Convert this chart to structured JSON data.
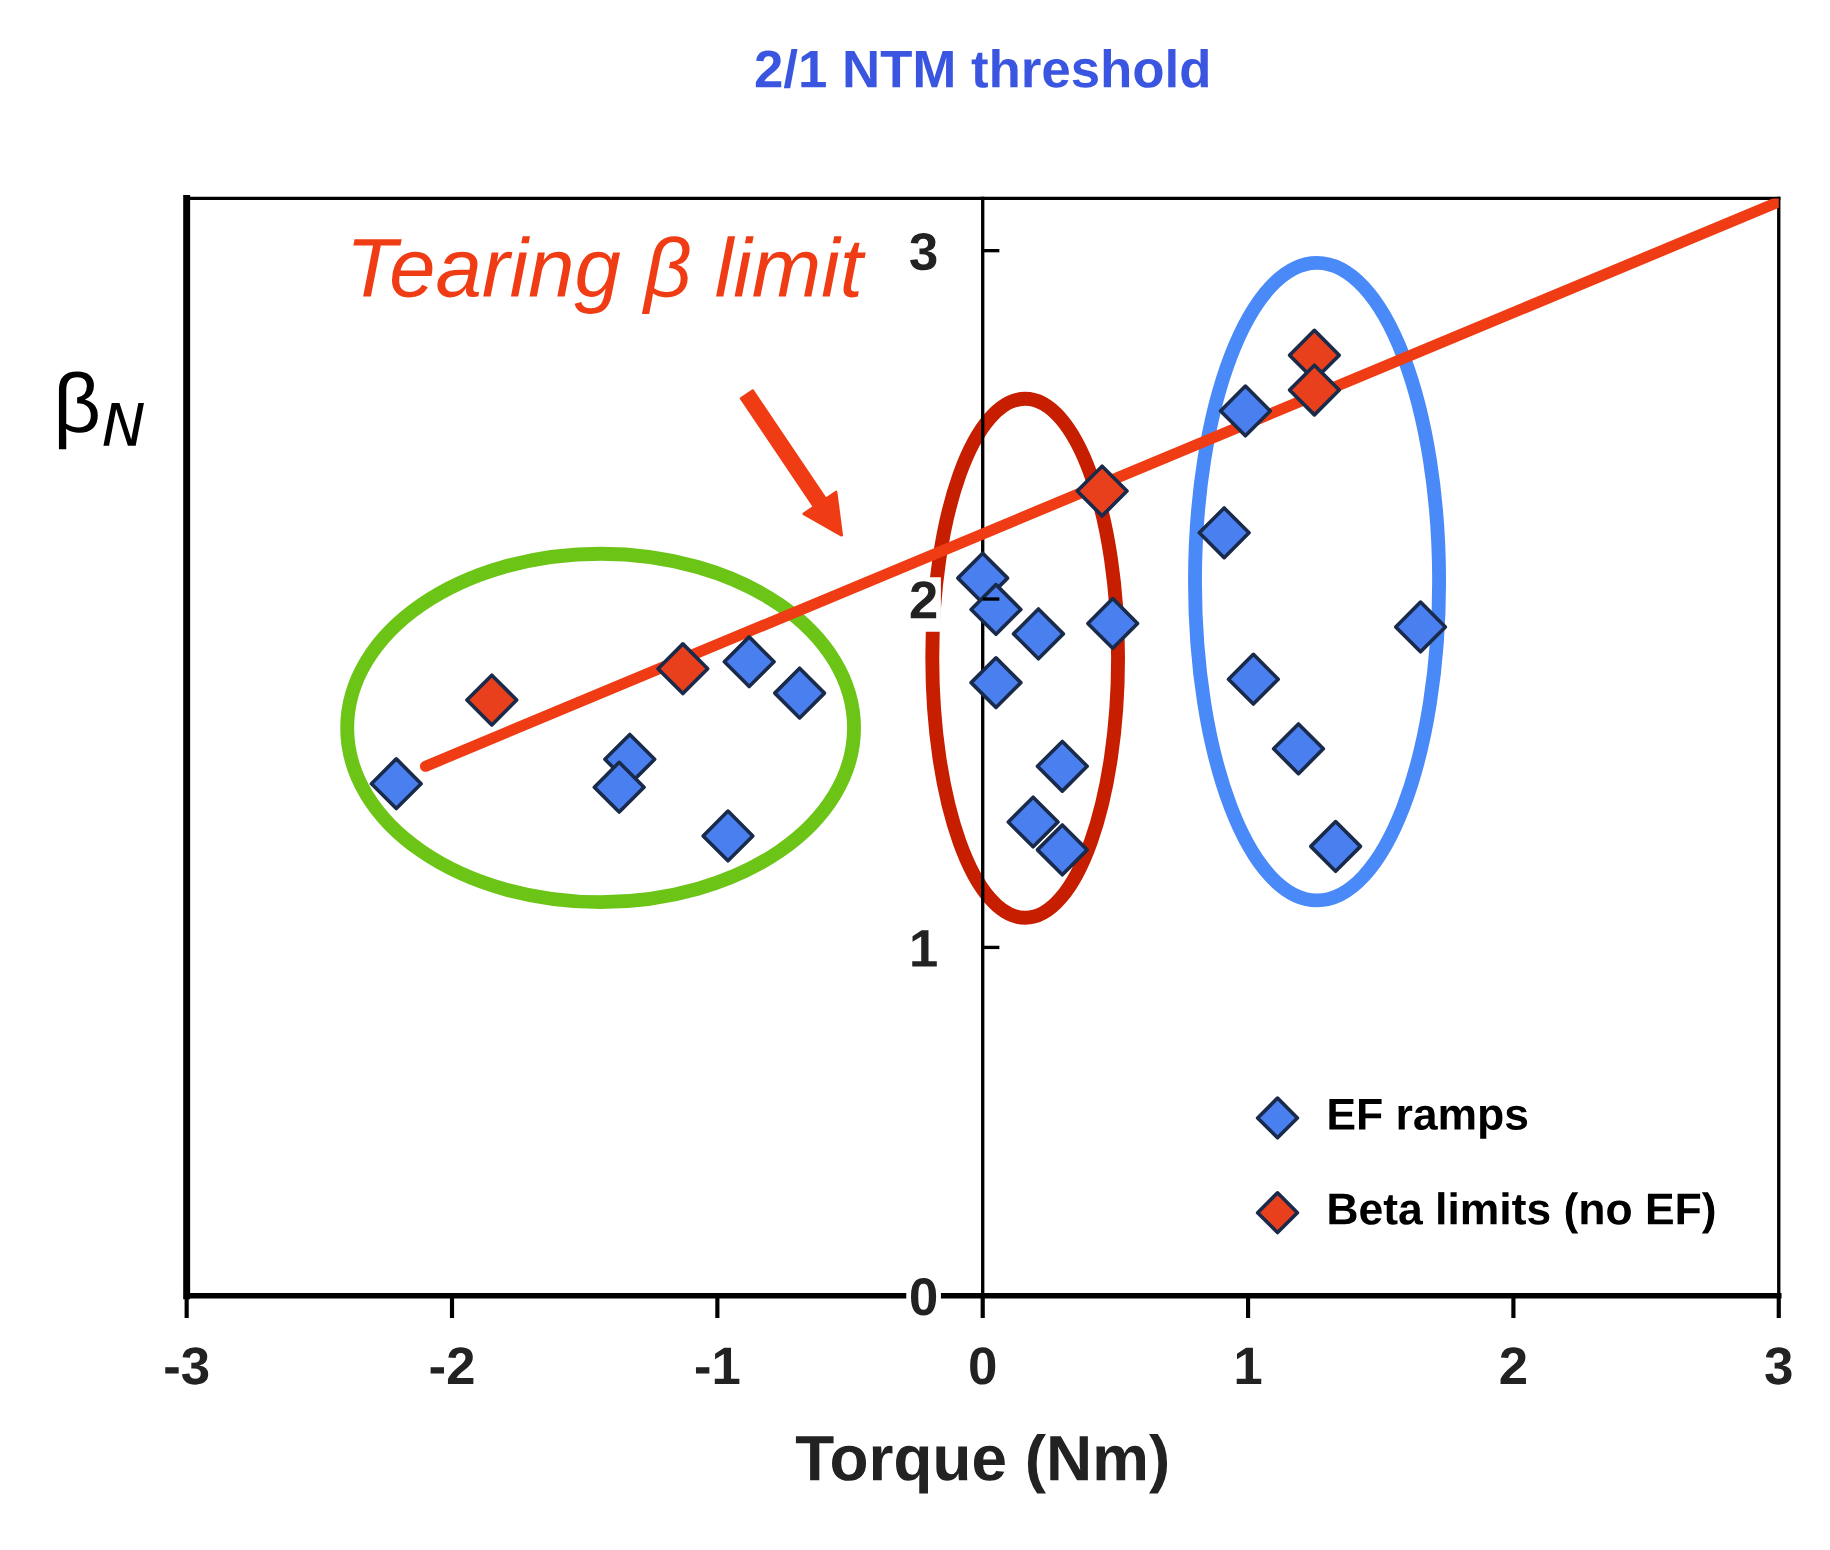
{
  "chart_data": {
    "type": "scatter",
    "title": "2/1 NTM threshold",
    "xlabel": "Torque (Nm)",
    "ylabel": "β$_{N}$",
    "xlim": [
      -3,
      3
    ],
    "xticks": [
      -3,
      -2,
      -1,
      0,
      1,
      2,
      3
    ],
    "ylim": [
      0,
      3.15
    ],
    "yticks": [
      0,
      1,
      2,
      3
    ],
    "marker": "diamond",
    "grid": false,
    "legend": "bottom right",
    "annotations": [
      "Tearing β limit"
    ],
    "series": [
      {
        "name": "EF ramps",
        "color": "#4a7ff0",
        "x": [
          -2.21,
          -0.88,
          -0.69,
          -1.33,
          -1.37,
          -0.96,
          0.0,
          0.05,
          0.21,
          0.49,
          0.05,
          0.3,
          0.19,
          0.3,
          0.91,
          1.65,
          1.02,
          1.19,
          1.33,
          0.99
        ],
        "values": [
          1.47,
          1.82,
          1.73,
          1.54,
          1.46,
          1.32,
          2.06,
          1.97,
          1.9,
          1.93,
          1.76,
          1.52,
          1.36,
          1.28,
          2.19,
          1.92,
          1.77,
          1.57,
          1.29,
          2.54
        ]
      },
      {
        "name": "Beta limits (no EF)",
        "color": "#e8401c",
        "x": [
          -1.85,
          -1.13,
          0.45,
          1.25,
          1.25
        ],
        "values": [
          1.71,
          1.8,
          2.31,
          2.7,
          2.6
        ]
      },
      {
        "type": "line",
        "marker": "none",
        "color": "#f03c14",
        "x": [
          -2.1,
          3
        ],
        "values": [
          1.52,
          3.14
        ]
      }
    ]
  }
}
